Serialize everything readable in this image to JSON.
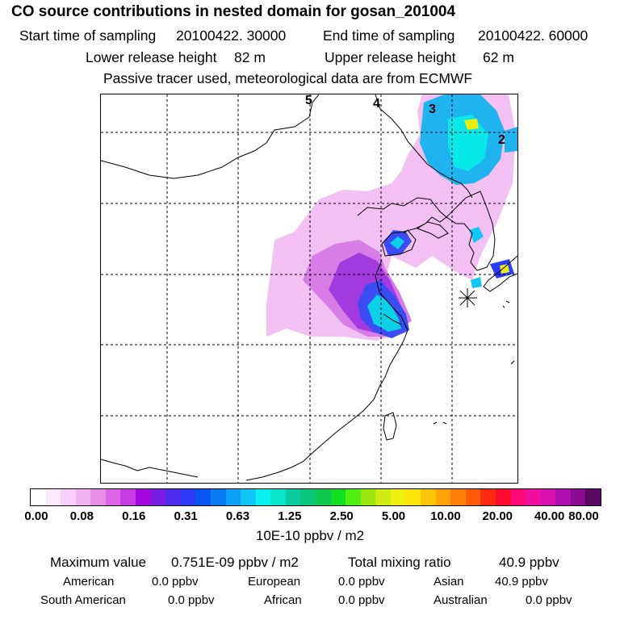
{
  "header": {
    "title": "CO  source contributions in nested domain for gosan_201004",
    "start_time_label": "Start time of sampling",
    "start_time_value": "20100422. 30000",
    "end_time_label": "End time of sampling",
    "end_time_value": "20100422. 60000",
    "lower_release_label": "Lower release height",
    "lower_release_value": "82 m",
    "upper_release_label": "Upper release height",
    "upper_release_value": "62 m",
    "tracer_note": "Passive tracer used, meteorological data are from ECMWF"
  },
  "map": {
    "day_markers": [
      "5",
      "4",
      "3",
      "2"
    ],
    "receptor_marker": "gosan-receptor"
  },
  "colorbar": {
    "colors": [
      "#ffffff",
      "#fde8fd",
      "#f8cff8",
      "#f1b4f1",
      "#e98fe9",
      "#dd66e8",
      "#c63ae6",
      "#a40ae0",
      "#7a1ee6",
      "#4f2cf0",
      "#2a3cf5",
      "#0c55f5",
      "#0a7af0",
      "#0aa0f5",
      "#12c6f5",
      "#08f0f0",
      "#0ae6c8",
      "#0acca0",
      "#08c878",
      "#10c850",
      "#10e020",
      "#50f010",
      "#9ae810",
      "#d0ec10",
      "#f0f010",
      "#fde50a",
      "#ffc408",
      "#ffa308",
      "#ff8008",
      "#ff5a08",
      "#ff2a10",
      "#ff0a30",
      "#ff0a7a",
      "#ef10a0",
      "#d810b0",
      "#b010b0",
      "#8a0a90",
      "#5a0a60"
    ],
    "tick_labels": [
      "0.00",
      "0.08",
      "0.16",
      "0.31",
      "0.63",
      "1.25",
      "2.50",
      "5.00",
      "10.00",
      "20.00",
      "40.00",
      "80.00"
    ],
    "units": "10E-10 ppbv / m2"
  },
  "stats": {
    "max_label": "Maximum value",
    "max_value": "0.751E-09 ppbv / m2",
    "total_label": "Total mixing ratio",
    "total_value": "40.9 ppbv",
    "regions": [
      {
        "name": "American",
        "value": "0.0 ppbv"
      },
      {
        "name": "European",
        "value": "0.0 ppbv"
      },
      {
        "name": "Asian",
        "value": "40.9 ppbv"
      },
      {
        "name": "South American",
        "value": "0.0 ppbv"
      },
      {
        "name": "African",
        "value": "0.0 ppbv"
      },
      {
        "name": "Australian",
        "value": "0.0 ppbv"
      }
    ]
  }
}
